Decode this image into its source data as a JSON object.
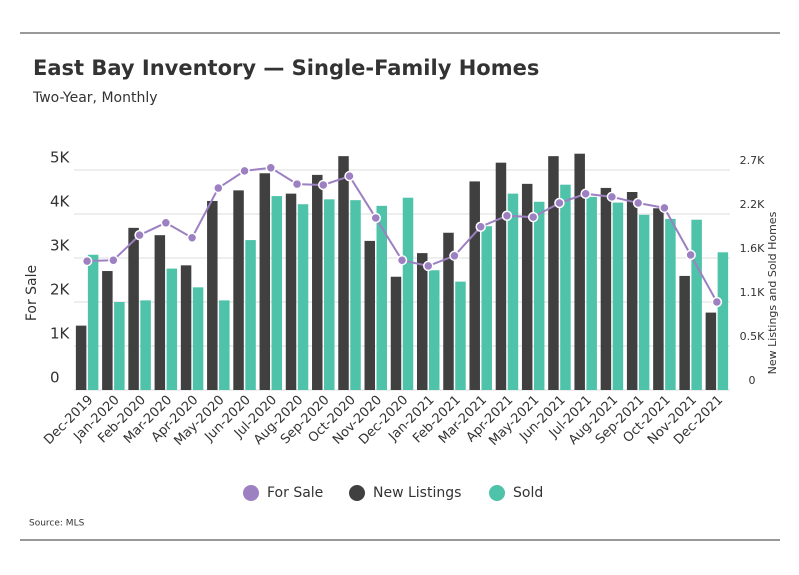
{
  "chart_data": {
    "type": "bar-line",
    "title": "East Bay Inventory — Single-Family Homes",
    "subtitle": "Two-Year, Monthly",
    "y_label": "For Sale",
    "y2_label": "New Listings and Sold Homes",
    "source": "Source:  MLS",
    "categories": [
      "Dec-2019",
      "Jan-2020",
      "Feb-2020",
      "Mar-2020",
      "Apr-2020",
      "May-2020",
      "Jun-2020",
      "Jul-2020",
      "Aug-2020",
      "Sep-2020",
      "Oct-2020",
      "Nov-2020",
      "Dec-2020",
      "Jan-2021",
      "Feb-2021",
      "Mar-2021",
      "Apr-2021",
      "May-2021",
      "Jun-2021",
      "Jul-2021",
      "Aug-2021",
      "Sep-2021",
      "Oct-2021",
      "Nov-2021",
      "Dec-2021"
    ],
    "series": [
      {
        "name": "For Sale",
        "type": "line",
        "axis": "y",
        "color": "#9c80c2",
        "values": [
          2930,
          2950,
          3520,
          3800,
          3460,
          4590,
          4980,
          5050,
          4680,
          4660,
          4860,
          3910,
          2950,
          2820,
          3050,
          3710,
          3960,
          3930,
          4250,
          4460,
          4390,
          4250,
          4140,
          3070,
          2000
        ]
      },
      {
        "name": "New Listings",
        "type": "bar",
        "axis": "y2",
        "color": "#404040",
        "values": [
          790,
          1460,
          1990,
          1900,
          1530,
          2320,
          2450,
          2660,
          2410,
          2640,
          2870,
          1830,
          1390,
          1680,
          1930,
          2560,
          2790,
          2530,
          2870,
          2900,
          2480,
          2430,
          2230,
          1400,
          950
        ]
      },
      {
        "name": "Sold",
        "type": "bar",
        "axis": "y2",
        "color": "#4ec3aa",
        "values": [
          1660,
          1080,
          1100,
          1490,
          1260,
          1100,
          1840,
          2380,
          2280,
          2340,
          2330,
          2260,
          2360,
          1470,
          1330,
          2010,
          2410,
          2310,
          2520,
          2370,
          2300,
          2150,
          2100,
          2090,
          1690
        ]
      }
    ],
    "ylim": [
      0,
      5500
    ],
    "yticks": [
      0,
      {
        "value": 1000,
        "label": "1K"
      },
      {
        "value": 2000,
        "label": "2K"
      },
      {
        "value": 3000,
        "label": "3K"
      },
      {
        "value": 4000,
        "label": "4K"
      },
      {
        "value": 5000,
        "label": "5K"
      }
    ],
    "y2lim": [
      0,
      2970
    ],
    "y2ticks": [
      0,
      {
        "value": 540,
        "label": "0.5K"
      },
      {
        "value": 1080,
        "label": "1.1K"
      },
      {
        "value": 1620,
        "label": "1.6K"
      },
      {
        "value": 2160,
        "label": "2.2K"
      },
      {
        "value": 2700,
        "label": "2.7K"
      }
    ],
    "grid": true,
    "legend": "bottom"
  }
}
